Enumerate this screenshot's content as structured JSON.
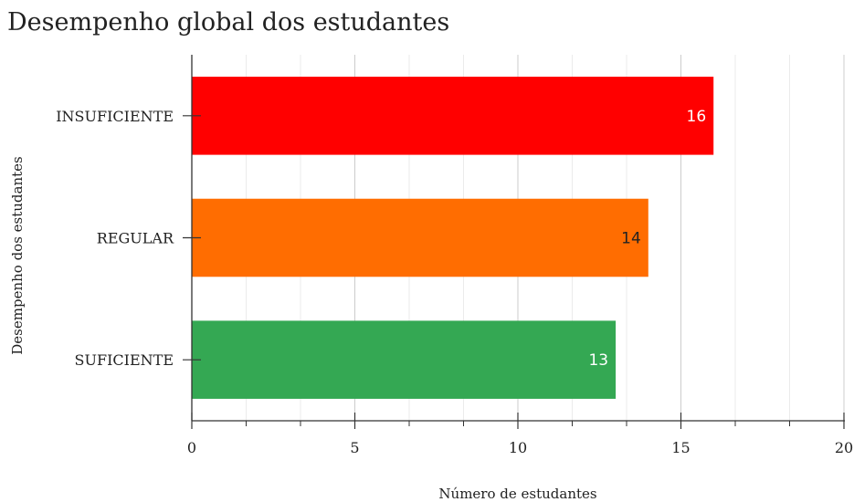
{
  "chart_data": {
    "type": "bar",
    "orientation": "horizontal",
    "title": "Desempenho global dos estudantes",
    "xlabel": "Número de estudantes",
    "ylabel": "Desempenho dos estudantes",
    "categories": [
      "INSUFICIENTE",
      "REGULAR",
      "SUFICIENTE"
    ],
    "values": [
      16,
      14,
      13
    ],
    "colors": [
      "#ff0000",
      "#ff6d01",
      "#34a853"
    ],
    "data_label_colors": [
      "#ffffff",
      "#222222",
      "#ffffff"
    ],
    "xlim": [
      0,
      20
    ],
    "xticks": [
      0,
      5,
      10,
      15,
      20
    ],
    "xtick_labels": [
      "0",
      "5",
      "10",
      "15",
      "20"
    ],
    "minor_xticks": [
      1.667,
      3.333,
      6.667,
      8.333,
      11.667,
      13.333,
      16.667,
      18.333
    ],
    "grid": true,
    "legend": "none"
  }
}
